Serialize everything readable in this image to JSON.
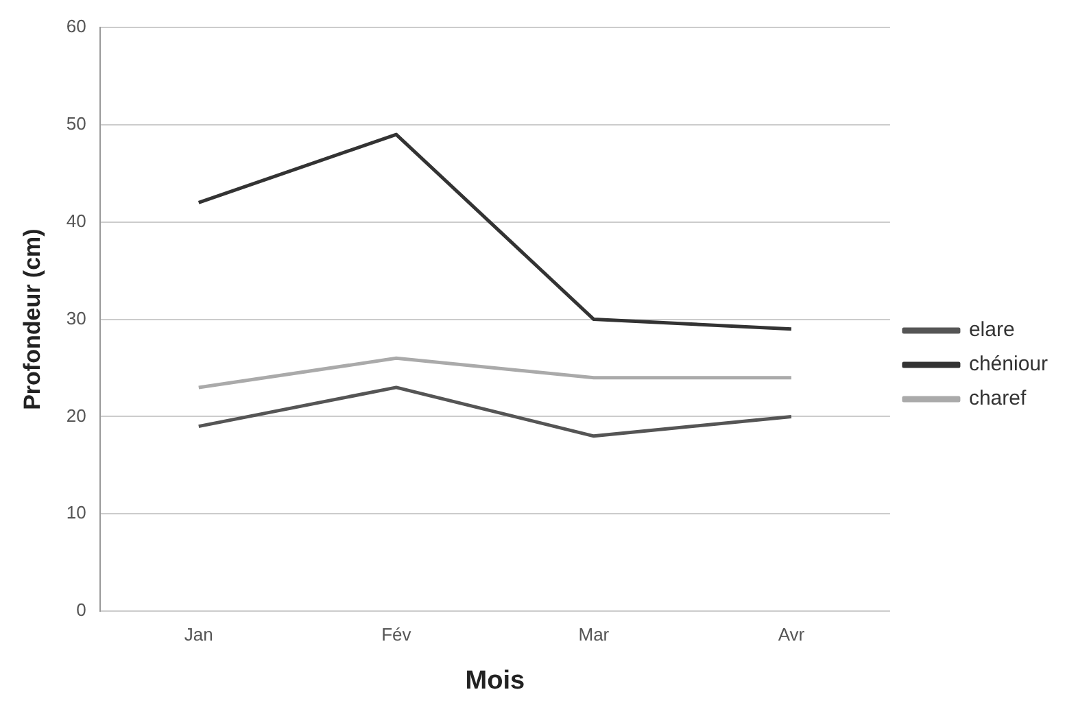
{
  "chart_data": {
    "type": "line",
    "xlabel": "Mois",
    "ylabel": "Profondeur (cm)",
    "categories": [
      "Jan",
      "Fév",
      "Mar",
      "Avr"
    ],
    "series": [
      {
        "name": "elare",
        "color": "#555555",
        "values": [
          19,
          23,
          18,
          20
        ]
      },
      {
        "name": "chéniour",
        "color": "#333333",
        "values": [
          42,
          49,
          30,
          29
        ]
      },
      {
        "name": "charef",
        "color": "#aaaaaa",
        "values": [
          23,
          26,
          24,
          24
        ]
      }
    ],
    "ylim": [
      0,
      60
    ],
    "yticks": [
      0,
      10,
      20,
      30,
      40,
      50,
      60
    ],
    "grid": "y",
    "legend": "right",
    "marker": "none",
    "line_style": "solid"
  }
}
